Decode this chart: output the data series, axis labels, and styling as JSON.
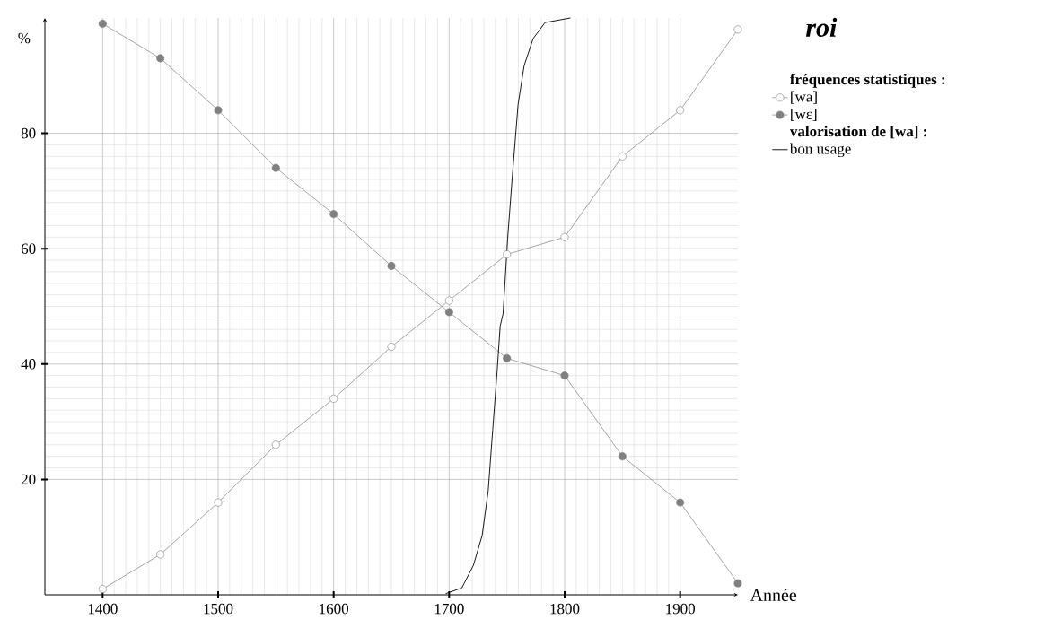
{
  "chart_data": {
    "type": "line",
    "title": "roi",
    "xlabel": "Année",
    "ylabel": "%",
    "x": [
      1400,
      1450,
      1500,
      1550,
      1600,
      1650,
      1700,
      1750,
      1800,
      1850,
      1900,
      1950
    ],
    "series": [
      {
        "name": "[wa]",
        "color": "#808080",
        "marker": "circle",
        "values": [
          1,
          7,
          16,
          26,
          34,
          43,
          51,
          59,
          62,
          76,
          84,
          98
        ]
      },
      {
        "name": "[wɛ]",
        "color": "#808080",
        "marker": "circle",
        "values": [
          99,
          93,
          84,
          74,
          66,
          57,
          49,
          41,
          38,
          24,
          16,
          2
        ]
      },
      {
        "name": "bon usage",
        "type": "line",
        "color": "#000000",
        "marker": "none",
        "x": [
          1697,
          1711,
          1721,
          1728.6,
          1733.8,
          1737.7,
          1741.6,
          1744.2,
          1746.7,
          1750.6,
          1754.5,
          1759.7,
          1764.9,
          1772.7,
          1783,
          1805
        ],
        "values": [
          0.2,
          1.2,
          5.1,
          10.3,
          18,
          28.5,
          38.9,
          46.6,
          48.7,
          61.6,
          72,
          85,
          91.7,
          96.4,
          99.2,
          100
        ]
      }
    ],
    "annotations": [
      "fréquences statistiques :",
      "valorisation de [wa] :"
    ],
    "xlim": [
      1350,
      1950
    ],
    "ylim": [
      0,
      100
    ],
    "xticks": [
      1400,
      1500,
      1600,
      1700,
      1800,
      1900
    ],
    "yticks": [
      20,
      40,
      60,
      80
    ],
    "grid": true,
    "legend": "top right"
  }
}
